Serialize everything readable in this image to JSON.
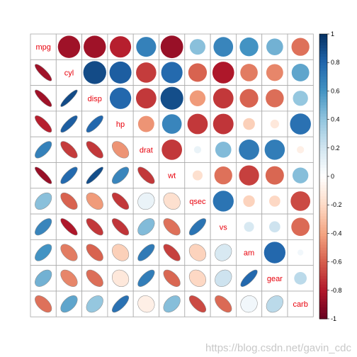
{
  "chart_data": {
    "type": "heatmap",
    "variables": [
      "mpg",
      "cyl",
      "disp",
      "hp",
      "drat",
      "wt",
      "qsec",
      "vs",
      "am",
      "gear",
      "carb"
    ],
    "matrix": [
      [
        1.0,
        -0.85,
        -0.85,
        -0.78,
        0.68,
        -0.87,
        0.42,
        0.66,
        0.6,
        0.48,
        -0.55
      ],
      [
        -0.85,
        1.0,
        0.9,
        0.83,
        -0.7,
        0.78,
        -0.59,
        -0.81,
        -0.52,
        -0.49,
        0.53
      ],
      [
        -0.85,
        0.9,
        1.0,
        0.79,
        -0.71,
        0.89,
        -0.43,
        -0.71,
        -0.59,
        -0.56,
        0.39
      ],
      [
        -0.78,
        0.83,
        0.79,
        1.0,
        -0.45,
        0.66,
        -0.71,
        -0.72,
        -0.24,
        -0.13,
        0.75
      ],
      [
        0.68,
        -0.7,
        -0.71,
        -0.45,
        1.0,
        -0.71,
        0.09,
        0.44,
        0.71,
        0.7,
        -0.09
      ],
      [
        -0.87,
        0.78,
        0.89,
        0.66,
        -0.71,
        1.0,
        -0.17,
        -0.55,
        -0.69,
        -0.58,
        0.43
      ],
      [
        0.42,
        -0.59,
        -0.43,
        -0.71,
        0.09,
        -0.17,
        1.0,
        0.74,
        -0.23,
        -0.21,
        -0.66
      ],
      [
        0.66,
        -0.81,
        -0.71,
        -0.72,
        0.44,
        -0.55,
        0.74,
        1.0,
        0.17,
        0.21,
        -0.57
      ],
      [
        0.6,
        -0.52,
        -0.59,
        -0.24,
        0.71,
        -0.69,
        -0.23,
        0.17,
        1.0,
        0.79,
        0.06
      ],
      [
        0.48,
        -0.49,
        -0.56,
        -0.13,
        0.7,
        -0.58,
        -0.21,
        0.21,
        0.79,
        1.0,
        0.27
      ],
      [
        -0.55,
        0.53,
        0.39,
        0.75,
        -0.09,
        0.43,
        -0.66,
        -0.57,
        0.06,
        0.27,
        1.0
      ]
    ],
    "upper_method": "circle",
    "lower_method": "ellipse",
    "diagonal": "labels",
    "colorbar_ticks": [
      "1",
      "0.8",
      "0.6",
      "0.4",
      "0.2",
      "0",
      "-0.2",
      "-0.4",
      "-0.6",
      "-0.8",
      "-1"
    ],
    "colorbar_range": [
      -1,
      1
    ],
    "label_color": "#e8000b",
    "grid_color": "#a9a9a9"
  },
  "watermark": "https://blog.csdn.net/gavin_cdc"
}
